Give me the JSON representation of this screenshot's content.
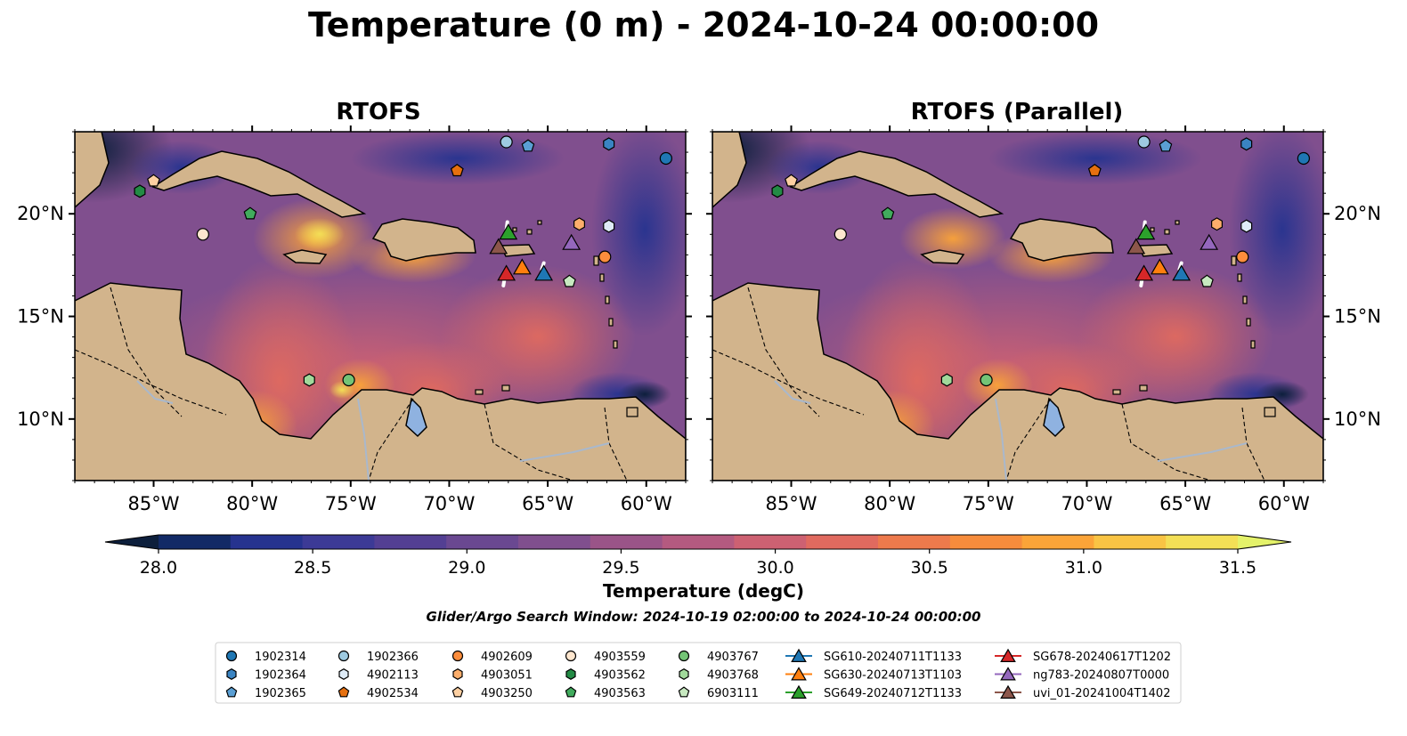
{
  "title": "Temperature (0 m) - 2024-10-24 00:00:00",
  "panels": [
    {
      "title": "RTOFS"
    },
    {
      "title": "RTOFS (Parallel)"
    }
  ],
  "colorbar": {
    "label": "Temperature (degC)",
    "ticks": [
      "28.0",
      "28.5",
      "29.0",
      "29.5",
      "30.0",
      "30.5",
      "31.0",
      "31.5"
    ],
    "range": [
      28.0,
      31.5
    ],
    "colors": [
      "#0d1f3c",
      "#122a66",
      "#26338f",
      "#3c3a96",
      "#533f93",
      "#6a4891",
      "#804f8e",
      "#9a5488",
      "#b45a80",
      "#cd6172",
      "#e06a5f",
      "#ed7a4c",
      "#f68c3c",
      "#fba438",
      "#f9c444",
      "#f3df56",
      "#e4f26a"
    ]
  },
  "subtitle": "Glider/Argo Search Window: 2024-10-19 02:00:00 to 2024-10-24 00:00:00",
  "chart_data": {
    "type": "map",
    "lon_ticks": [
      "85°W",
      "80°W",
      "75°W",
      "70°W",
      "65°W",
      "60°W"
    ],
    "lat_ticks": [
      "10°N",
      "15°N",
      "20°N"
    ],
    "lon_range": [
      -89,
      -58
    ],
    "lat_range": [
      7,
      24
    ],
    "floats": [
      {
        "id": "1902314",
        "marker": "circle",
        "color": "#1f77b4",
        "lon": -59.0,
        "lat": 22.7
      },
      {
        "id": "1902364",
        "marker": "hexagon",
        "color": "#3a84c2",
        "lon": -61.9,
        "lat": 23.4
      },
      {
        "id": "1902365",
        "marker": "pentagon",
        "color": "#5a9fd4",
        "lon": -66.0,
        "lat": 23.3
      },
      {
        "id": "1902366",
        "marker": "circle",
        "color": "#9ecae1",
        "lon": -67.1,
        "lat": 23.5
      },
      {
        "id": "4902113",
        "marker": "hexagon",
        "color": "#deebf7",
        "lon": -61.9,
        "lat": 19.4
      },
      {
        "id": "4902534",
        "marker": "pentagon",
        "color": "#e6700f",
        "lon": -69.6,
        "lat": 22.1
      },
      {
        "id": "4902609",
        "marker": "circle",
        "color": "#fd8d3c",
        "lon": -62.1,
        "lat": 17.9
      },
      {
        "id": "4903051",
        "marker": "hexagon",
        "color": "#fdae6b",
        "lon": -63.4,
        "lat": 19.5
      },
      {
        "id": "4903250",
        "marker": "pentagon",
        "color": "#fdd0a2",
        "lon": -85.0,
        "lat": 21.6
      },
      {
        "id": "4903559",
        "marker": "circle",
        "color": "#fee6ce",
        "lon": -82.5,
        "lat": 19.0
      },
      {
        "id": "4903562",
        "marker": "hexagon",
        "color": "#238b45",
        "lon": -85.7,
        "lat": 21.1
      },
      {
        "id": "4903563",
        "marker": "pentagon",
        "color": "#41ab5d",
        "lon": -80.1,
        "lat": 20.0
      },
      {
        "id": "4903767",
        "marker": "circle",
        "color": "#74c476",
        "lon": -75.1,
        "lat": 11.9
      },
      {
        "id": "4903768",
        "marker": "hexagon",
        "color": "#a1d99b",
        "lon": -77.1,
        "lat": 11.9
      },
      {
        "id": "6903111",
        "marker": "pentagon",
        "color": "#c7e9c0",
        "lon": -63.9,
        "lat": 16.7
      }
    ],
    "gliders": [
      {
        "id": "SG610-20240711T1133",
        "color": "#1f77b4",
        "lon": -65.2,
        "lat": 17.1
      },
      {
        "id": "SG630-20240713T1103",
        "color": "#ff7f0e",
        "lon": -66.3,
        "lat": 17.4
      },
      {
        "id": "SG649-20240712T1133",
        "color": "#2ca02c",
        "lon": -67.0,
        "lat": 19.1
      },
      {
        "id": "SG678-20240617T1202",
        "color": "#d62728",
        "lon": -67.1,
        "lat": 17.1
      },
      {
        "id": "ng783-20240807T0000",
        "color": "#9467bd",
        "lon": -63.8,
        "lat": 18.6
      },
      {
        "id": "uvi_01-20241004T1402",
        "color": "#8c564b",
        "lon": -67.5,
        "lat": 18.4
      }
    ]
  }
}
